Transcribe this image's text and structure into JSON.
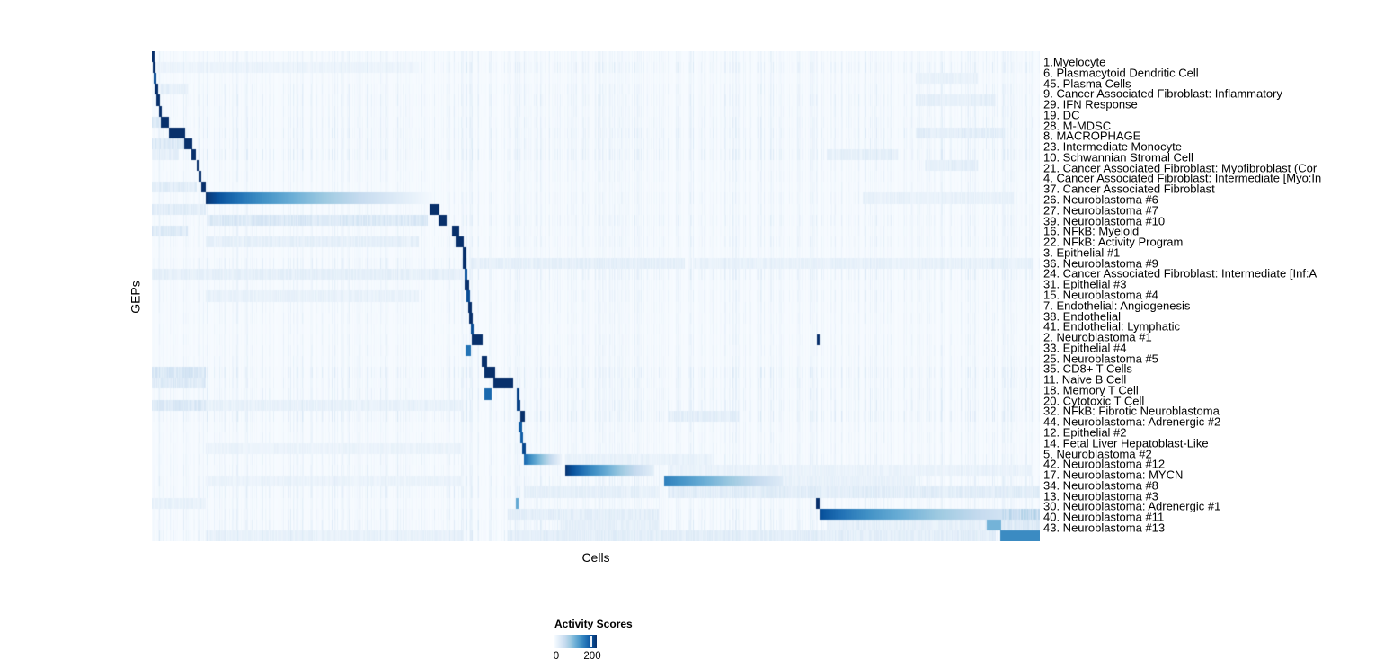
{
  "chart_data": {
    "type": "heatmap",
    "title": "",
    "xlabel": "Cells",
    "ylabel": "GEPs",
    "colormap": "Blues",
    "colormap_stops": [
      "#f7fbff",
      "#deebf7",
      "#c6dbef",
      "#9ecae1",
      "#6baed6",
      "#4292c6",
      "#2171b5",
      "#08519c",
      "#08306b"
    ],
    "value_range": [
      0,
      230
    ],
    "colorbar": {
      "title": "Activity Scores",
      "tick_labels": [
        "0",
        "200"
      ],
      "tick_values": [
        0,
        200
      ]
    },
    "layout": {
      "grid": false,
      "legend_position": "bottom-center",
      "row_count": 45
    },
    "rows": [
      {
        "label": "1.Myelocyte",
        "noise": 0.3,
        "blocks": [
          [
            0.0,
            0.0025,
            230,
            230,
            1
          ]
        ],
        "bands": []
      },
      {
        "label": "6. Plasmacytoid Dendritic Cell",
        "noise": 0.45,
        "blocks": [
          [
            0.001,
            0.004,
            230,
            230,
            1
          ]
        ],
        "bands": [
          [
            0.004,
            0.3,
            16
          ]
        ]
      },
      {
        "label": "45. Plasma Cells",
        "noise": 0.25,
        "blocks": [
          [
            0.002,
            0.005,
            205,
            205,
            1
          ]
        ],
        "bands": [
          [
            0.86,
            0.93,
            22
          ]
        ]
      },
      {
        "label": "9. Cancer Associated Fibroblast: Inflammatory",
        "noise": 0.35,
        "blocks": [
          [
            0.003,
            0.0065,
            230,
            230,
            1
          ]
        ],
        "bands": [
          [
            0.007,
            0.04,
            28
          ]
        ]
      },
      {
        "label": "29. IFN Response",
        "noise": 0.4,
        "blocks": [
          [
            0.0045,
            0.009,
            230,
            230,
            1
          ]
        ],
        "bands": [
          [
            0.86,
            0.95,
            26
          ]
        ]
      },
      {
        "label": "19. DC",
        "noise": 0.35,
        "blocks": [
          [
            0.0075,
            0.011,
            230,
            230,
            1
          ]
        ],
        "bands": []
      },
      {
        "label": "28. M-MDSC",
        "noise": 0.4,
        "blocks": [
          [
            0.01,
            0.019,
            230,
            230,
            1
          ]
        ],
        "bands": [
          [
            0.0,
            0.01,
            40
          ]
        ]
      },
      {
        "label": "8. MACROPHAGE",
        "noise": 0.45,
        "blocks": [
          [
            0.019,
            0.037,
            230,
            230,
            1
          ]
        ],
        "bands": [
          [
            0.86,
            0.96,
            30
          ]
        ]
      },
      {
        "label": "23. Intermediate Monocyte",
        "noise": 0.4,
        "blocks": [
          [
            0.036,
            0.0455,
            230,
            230,
            1
          ]
        ],
        "bands": [
          [
            0.0,
            0.036,
            42
          ]
        ]
      },
      {
        "label": "10. Schwannian Stromal Cell",
        "noise": 0.5,
        "blocks": [
          [
            0.0445,
            0.0495,
            230,
            230,
            1
          ]
        ],
        "bands": [
          [
            0.0,
            0.03,
            28
          ],
          [
            0.76,
            0.84,
            25
          ]
        ]
      },
      {
        "label": "21. Cancer Associated Fibroblast: Myofibroblast (Cor",
        "noise": 0.3,
        "blocks": [
          [
            0.0496,
            0.0526,
            230,
            230,
            1
          ]
        ],
        "bands": [
          [
            0.87,
            0.93,
            28
          ]
        ]
      },
      {
        "label": "4. Cancer Associated Fibroblast: Intermediate [Myo:In",
        "noise": 0.3,
        "blocks": [
          [
            0.0526,
            0.0556,
            230,
            230,
            1
          ]
        ],
        "bands": []
      },
      {
        "label": "37. Cancer Associated Fibroblast",
        "noise": 0.25,
        "blocks": [
          [
            0.0556,
            0.0607,
            230,
            230,
            1
          ]
        ],
        "bands": [
          [
            0.0,
            0.05,
            32
          ]
        ]
      },
      {
        "label": "26. Neuroblastoma #6",
        "noise": 0.35,
        "blocks": [
          [
            0.0607,
            0.315,
            230,
            4,
            0.7
          ]
        ],
        "bands": [
          [
            0.8,
            0.97,
            22
          ]
        ]
      },
      {
        "label": "27. Neuroblastoma #7",
        "noise": 0.3,
        "blocks": [
          [
            0.312,
            0.323,
            230,
            230,
            1
          ]
        ],
        "bands": [
          [
            0.0,
            0.06,
            32
          ]
        ]
      },
      {
        "label": "39. Neuroblastoma #10",
        "noise": 0.4,
        "blocks": [
          [
            0.322,
            0.331,
            230,
            230,
            1
          ]
        ],
        "bands": [
          [
            0.061,
            0.31,
            42
          ]
        ]
      },
      {
        "label": "16. NFkB: Myeloid",
        "noise": 0.3,
        "blocks": [
          [
            0.338,
            0.346,
            230,
            230,
            1
          ]
        ],
        "bands": [
          [
            0.0,
            0.04,
            38
          ]
        ]
      },
      {
        "label": "22. NFkB: Activity Program",
        "noise": 0.35,
        "blocks": [
          [
            0.342,
            0.351,
            230,
            230,
            1
          ]
        ],
        "bands": [
          [
            0.06,
            0.3,
            26
          ]
        ]
      },
      {
        "label": "3. Epithelial #1",
        "noise": 0.25,
        "blocks": [
          [
            0.35,
            0.354,
            230,
            230,
            1
          ]
        ],
        "bands": []
      },
      {
        "label": "36. Neuroblastoma #9",
        "noise": 0.45,
        "blocks": [
          [
            0.35,
            0.354,
            230,
            230,
            1
          ]
        ],
        "bands": [
          [
            0.36,
            0.6,
            26
          ],
          [
            0.61,
            0.99,
            22
          ]
        ]
      },
      {
        "label": "24. Cancer Associated Fibroblast: Intermediate [Inf:A",
        "noise": 0.45,
        "blocks": [
          [
            0.352,
            0.355,
            200,
            200,
            1
          ]
        ],
        "bands": [
          [
            0.0,
            0.35,
            26
          ]
        ]
      },
      {
        "label": "31. Epithelial #3",
        "noise": 0.3,
        "blocks": [
          [
            0.352,
            0.357,
            230,
            230,
            1
          ]
        ],
        "bands": []
      },
      {
        "label": "15. Neuroblastoma #4",
        "noise": 0.35,
        "blocks": [
          [
            0.354,
            0.358,
            205,
            205,
            1
          ]
        ],
        "bands": [
          [
            0.06,
            0.3,
            22
          ]
        ]
      },
      {
        "label": "7. Endothelial: Angiogenesis",
        "noise": 0.3,
        "blocks": [
          [
            0.356,
            0.36,
            230,
            230,
            1
          ]
        ],
        "bands": []
      },
      {
        "label": "38. Endothelial",
        "noise": 0.3,
        "blocks": [
          [
            0.357,
            0.361,
            230,
            230,
            1
          ]
        ],
        "bands": []
      },
      {
        "label": "41. Endothelial: Lymphatic",
        "noise": 0.25,
        "blocks": [
          [
            0.359,
            0.362,
            205,
            205,
            1
          ]
        ],
        "bands": []
      },
      {
        "label": "2. Neuroblastoma #1",
        "noise": 0.3,
        "blocks": [
          [
            0.36,
            0.372,
            230,
            230,
            1
          ],
          [
            0.748,
            0.7515,
            230,
            230,
            1
          ]
        ],
        "bands": []
      },
      {
        "label": "33. Epithelial #4",
        "noise": 0.3,
        "blocks": [
          [
            0.353,
            0.359,
            170,
            170,
            1
          ]
        ],
        "bands": []
      },
      {
        "label": "25. Neuroblastoma #5",
        "noise": 0.3,
        "blocks": [
          [
            0.371,
            0.377,
            230,
            230,
            1
          ]
        ],
        "bands": []
      },
      {
        "label": "35. CD8+ T Cells",
        "noise": 0.5,
        "blocks": [
          [
            0.374,
            0.386,
            230,
            230,
            1
          ]
        ],
        "bands": [
          [
            0.0,
            0.06,
            48
          ]
        ]
      },
      {
        "label": "11. Naive B Cell",
        "noise": 0.4,
        "blocks": [
          [
            0.384,
            0.406,
            230,
            230,
            1
          ]
        ],
        "bands": [
          [
            0.0,
            0.06,
            38
          ]
        ]
      },
      {
        "label": "18. Memory T Cell",
        "noise": 0.4,
        "blocks": [
          [
            0.374,
            0.382,
            180,
            180,
            1
          ],
          [
            0.41,
            0.413,
            215,
            215,
            1
          ]
        ],
        "bands": []
      },
      {
        "label": "20. Cytotoxic T Cell",
        "noise": 0.45,
        "blocks": [
          [
            0.41,
            0.414,
            215,
            215,
            1
          ]
        ],
        "bands": [
          [
            0.0,
            0.06,
            42
          ],
          [
            0.06,
            0.35,
            22
          ]
        ]
      },
      {
        "label": "32. NFkB: Fibrotic Neuroblastoma",
        "noise": 0.5,
        "blocks": [
          [
            0.414,
            0.42,
            230,
            230,
            1
          ]
        ],
        "bands": [
          [
            0.58,
            0.66,
            30
          ]
        ]
      },
      {
        "label": "44. Neuroblastoma: Adrenergic #2",
        "noise": 0.3,
        "blocks": [
          [
            0.412,
            0.417,
            190,
            190,
            1
          ]
        ],
        "bands": []
      },
      {
        "label": "12. Epithelial #2",
        "noise": 0.3,
        "blocks": [
          [
            0.414,
            0.418,
            190,
            190,
            1
          ]
        ],
        "bands": []
      },
      {
        "label": "14. Fetal Liver Hepatoblast-Like",
        "noise": 0.3,
        "blocks": [
          [
            0.417,
            0.421,
            210,
            210,
            1
          ]
        ],
        "bands": [
          [
            0.06,
            0.35,
            18
          ]
        ]
      },
      {
        "label": "5. Neuroblastoma #2",
        "noise": 0.35,
        "blocks": [
          [
            0.419,
            0.461,
            180,
            12,
            0.9
          ]
        ],
        "bands": [
          [
            0.465,
            0.63,
            22
          ]
        ]
      },
      {
        "label": "42. Neuroblastoma #12",
        "noise": 0.35,
        "blocks": [
          [
            0.465,
            0.565,
            230,
            22,
            0.8
          ]
        ],
        "bands": [
          [
            0.58,
            0.99,
            20
          ]
        ]
      },
      {
        "label": "17. Neuroblastoma: MYCN",
        "noise": 0.4,
        "blocks": [
          [
            0.576,
            0.71,
            160,
            28,
            1
          ]
        ],
        "bands": [
          [
            0.71,
            0.86,
            22
          ],
          [
            0.06,
            0.35,
            18
          ]
        ]
      },
      {
        "label": "34. Neuroblastoma #8",
        "noise": 0.45,
        "blocks": [],
        "bands": [
          [
            0.42,
            0.57,
            26
          ],
          [
            0.58,
            1.0,
            32
          ]
        ]
      },
      {
        "label": "13. Neuroblastoma #3",
        "noise": 0.3,
        "blocks": [
          [
            0.7478,
            0.7512,
            230,
            230,
            1
          ],
          [
            0.4095,
            0.4125,
            120,
            120,
            1
          ]
        ],
        "bands": [
          [
            0.0,
            0.06,
            22
          ]
        ]
      },
      {
        "label": "30. Neuroblastoma: Adrenergic #1",
        "noise": 0.4,
        "blocks": [
          [
            0.7515,
            0.995,
            210,
            22,
            0.7
          ]
        ],
        "bands": [
          [
            0.4,
            0.57,
            30
          ],
          [
            0.957,
            1.0,
            75
          ]
        ]
      },
      {
        "label": "40. Neuroblastoma #11",
        "noise": 0.45,
        "blocks": [
          [
            0.94,
            0.9555,
            110,
            110,
            1
          ]
        ],
        "bands": [
          [
            0.46,
            0.57,
            26
          ],
          [
            0.76,
            0.94,
            26
          ],
          [
            0.955,
            1.0,
            38
          ]
        ]
      },
      {
        "label": "43. Neuroblastoma #13",
        "noise": 0.5,
        "blocks": [
          [
            0.955,
            1.0,
            150,
            150,
            1
          ]
        ],
        "bands": [
          [
            0.4,
            0.95,
            30
          ],
          [
            0.06,
            0.35,
            22
          ]
        ]
      }
    ]
  }
}
